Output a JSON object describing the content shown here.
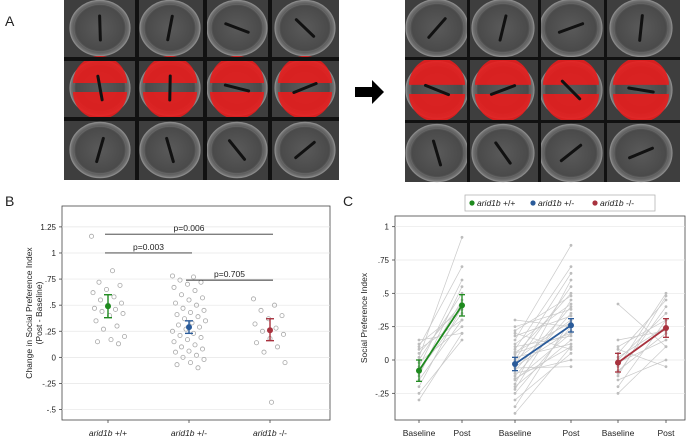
{
  "panels": {
    "A": {
      "letter": "A"
    },
    "B": {
      "letter": "B"
    },
    "C": {
      "letter": "C"
    }
  },
  "chart_data": [
    {
      "panel": "B",
      "type": "scatter",
      "ylabel": "Change in Social Preference Index",
      "ylabel2": "(Post - Baseline)",
      "categories": [
        "arid1b +/+",
        "arid1b +/-",
        "arid1b -/-"
      ],
      "yticks": [
        -0.5,
        -0.25,
        0,
        0.25,
        0.5,
        0.75,
        1,
        1.25
      ],
      "ytick_labels": [
        "-.5",
        "-.25",
        "0",
        ".25",
        ".5",
        ".75",
        "1",
        "1.25"
      ],
      "ylim": [
        -0.6,
        1.45
      ],
      "groups": [
        {
          "category": "arid1b +/+",
          "color": "#1e8a1e",
          "mean": 0.49,
          "ci": [
            0.38,
            0.6
          ],
          "points": [
            1.16,
            0.83,
            0.72,
            0.69,
            0.65,
            0.62,
            0.58,
            0.55,
            0.52,
            0.5,
            0.47,
            0.46,
            0.44,
            0.42,
            0.4,
            0.35,
            0.3,
            0.27,
            0.2,
            0.17,
            0.15,
            0.13
          ]
        },
        {
          "category": "arid1b +/-",
          "color": "#2a5b9a",
          "mean": 0.29,
          "ci": [
            0.23,
            0.35
          ],
          "points": [
            0.78,
            0.77,
            0.74,
            0.72,
            0.7,
            0.67,
            0.64,
            0.6,
            0.57,
            0.55,
            0.52,
            0.5,
            0.47,
            0.45,
            0.43,
            0.41,
            0.39,
            0.37,
            0.35,
            0.33,
            0.31,
            0.29,
            0.27,
            0.25,
            0.23,
            0.21,
            0.19,
            0.17,
            0.15,
            0.12,
            0.1,
            0.08,
            0.06,
            0.05,
            0.02,
            0.0,
            -0.02,
            -0.05,
            -0.07,
            -0.1
          ]
        },
        {
          "category": "arid1b -/-",
          "color": "#a8323e",
          "mean": 0.26,
          "ci": [
            0.16,
            0.37
          ],
          "points": [
            0.56,
            0.5,
            0.45,
            0.4,
            0.37,
            0.32,
            0.28,
            0.25,
            0.22,
            0.18,
            0.14,
            0.1,
            0.05,
            -0.05,
            -0.43
          ]
        }
      ],
      "comparisons": [
        {
          "from": 0,
          "to": 1,
          "label": "p=0.003",
          "y": 1.0
        },
        {
          "from": 0,
          "to": 2,
          "label": "p=0.006",
          "y": 1.18
        },
        {
          "from": 1,
          "to": 2,
          "label": "p=0.705",
          "y": 0.74
        }
      ]
    },
    {
      "panel": "C",
      "type": "line",
      "ylabel": "Social Preference Index",
      "yticks": [
        -0.25,
        0,
        0.25,
        0.5,
        0.75,
        1
      ],
      "ytick_labels": [
        "-.25",
        "0",
        ".25",
        ".5",
        ".75",
        "1"
      ],
      "ylim": [
        -0.45,
        1.08
      ],
      "x_labels": [
        "Baseline",
        "Post",
        "Baseline",
        "Post",
        "Baseline",
        "Post"
      ],
      "legend": [
        {
          "name": "arid1b +/+",
          "color": "#1e8a1e"
        },
        {
          "name": "arid1b +/-",
          "color": "#2a5b9a"
        },
        {
          "name": "arid1b -/-",
          "color": "#a8323e"
        }
      ],
      "series": [
        {
          "name": "arid1b +/+",
          "color": "#1e8a1e",
          "baseline_mean": -0.08,
          "post_mean": 0.41,
          "baseline_ci": [
            -0.16,
            0.0
          ],
          "post_ci": [
            0.33,
            0.49
          ]
        },
        {
          "name": "arid1b +/-",
          "color": "#2a5b9a",
          "baseline_mean": -0.03,
          "post_mean": 0.26,
          "baseline_ci": [
            -0.08,
            0.02
          ],
          "post_ci": [
            0.21,
            0.31
          ]
        },
        {
          "name": "arid1b -/-",
          "color": "#a8323e",
          "baseline_mean": -0.02,
          "post_mean": 0.24,
          "baseline_ci": [
            -0.09,
            0.05
          ],
          "post_ci": [
            0.17,
            0.31
          ]
        }
      ],
      "individual_pairs": [
        [
          [
            -0.3,
            0.2
          ],
          [
            -0.25,
            0.15
          ],
          [
            -0.2,
            0.4
          ],
          [
            -0.15,
            0.3
          ],
          [
            -0.12,
            0.55
          ],
          [
            -0.1,
            0.45
          ],
          [
            -0.08,
            0.35
          ],
          [
            -0.05,
            0.6
          ],
          [
            -0.02,
            0.25
          ],
          [
            0.0,
            0.5
          ],
          [
            0.02,
            0.92
          ],
          [
            0.05,
            0.42
          ],
          [
            0.08,
            0.3
          ],
          [
            0.1,
            0.7
          ],
          [
            0.12,
            0.38
          ],
          [
            0.15,
            0.2
          ]
        ],
        [
          [
            -0.4,
            0.1
          ],
          [
            -0.35,
            0.3
          ],
          [
            -0.3,
            0.05
          ],
          [
            -0.25,
            0.25
          ],
          [
            -0.22,
            0.45
          ],
          [
            -0.2,
            0.15
          ],
          [
            -0.18,
            0.6
          ],
          [
            -0.15,
            0.2
          ],
          [
            -0.12,
            0.35
          ],
          [
            -0.1,
            0.0
          ],
          [
            -0.08,
            0.4
          ],
          [
            -0.05,
            0.22
          ],
          [
            -0.03,
            0.55
          ],
          [
            0.0,
            0.3
          ],
          [
            0.02,
            0.12
          ],
          [
            0.04,
            0.5
          ],
          [
            0.06,
            0.28
          ],
          [
            0.08,
            0.7
          ],
          [
            0.1,
            0.18
          ],
          [
            0.12,
            0.42
          ],
          [
            0.15,
            0.86
          ],
          [
            0.18,
            0.33
          ],
          [
            0.2,
            0.08
          ],
          [
            0.22,
            0.48
          ],
          [
            0.25,
            0.38
          ],
          [
            0.3,
            0.25
          ],
          [
            -0.06,
            -0.05
          ],
          [
            0.0,
            0.65
          ],
          [
            -0.14,
            0.1
          ],
          [
            0.05,
            0.2
          ]
        ],
        [
          [
            -0.25,
            0.1
          ],
          [
            -0.2,
            0.3
          ],
          [
            -0.15,
            0.0
          ],
          [
            -0.1,
            0.4
          ],
          [
            -0.08,
            0.2
          ],
          [
            -0.05,
            0.5
          ],
          [
            -0.02,
            0.15
          ],
          [
            0.0,
            0.35
          ],
          [
            0.02,
            0.25
          ],
          [
            0.05,
            0.45
          ],
          [
            0.08,
            -0.05
          ],
          [
            0.1,
            0.3
          ],
          [
            0.15,
            0.22
          ],
          [
            0.42,
            0.1
          ],
          [
            -0.12,
            0.48
          ]
        ]
      ]
    }
  ]
}
